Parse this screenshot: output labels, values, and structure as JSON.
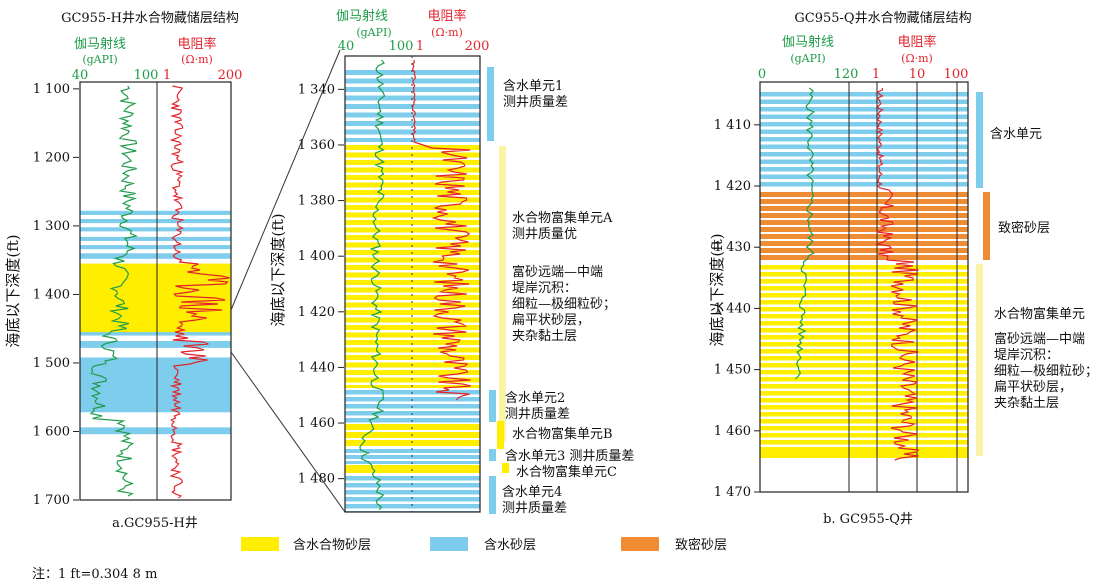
{
  "colors": {
    "hydrate": "#FFEE00",
    "water": "#7FCDEC",
    "tight": "#F08C33",
    "gamma": "#1E9C4A",
    "resistivity": "#E3232C",
    "bracket_water": "#7FCDEC",
    "bracket_hydrate": "#FBF4A6",
    "bracket_tight": "#F08C33"
  },
  "panel_a": {
    "title": "GC955-H井水合物藏储层结构",
    "caption": "a.GC955-H井",
    "ylabel": "海底以下深度(ft)",
    "gamma_label": "伽马射线",
    "gamma_unit": "(gAPI)",
    "res_label": "电阻率",
    "res_unit": "(Ω·m)",
    "gamma_ticks": [
      "40",
      "100"
    ],
    "res_ticks": [
      "1",
      "200"
    ],
    "depth_ticks": [
      "1 100",
      "1 200",
      "1 300",
      "1 400",
      "1 500",
      "1 600",
      "1 700"
    ],
    "depth_range": [
      1090,
      1700
    ],
    "hydrate_bands": [
      [
        1355,
        1455
      ]
    ],
    "water_bands": [
      [
        1278,
        1284
      ],
      [
        1290,
        1296
      ],
      [
        1302,
        1308
      ],
      [
        1316,
        1322
      ],
      [
        1328,
        1334
      ],
      [
        1340,
        1348
      ],
      [
        1445,
        1460
      ],
      [
        1468,
        1478
      ],
      [
        1492,
        1572
      ],
      [
        1594,
        1604
      ]
    ]
  },
  "panel_zoom": {
    "gamma_label": "伽马射线",
    "gamma_unit": "(gAPI)",
    "res_label": "电阻率",
    "res_unit": "(Ω·m)",
    "gamma_ticks": [
      "40",
      "100"
    ],
    "res_ticks": [
      "1",
      "200"
    ],
    "ylabel": "海底以下深度(ft)",
    "depth_ticks": [
      "1 340",
      "1 360",
      "1 380",
      "1 400",
      "1 420",
      "1 440",
      "1 460",
      "1 480"
    ],
    "depth_range": [
      1328,
      1492
    ],
    "annotations": [
      {
        "lines": [
          "含水单元1",
          "测井质量差"
        ]
      },
      {
        "lines": [
          "水合物富集单元A",
          "测井质量优"
        ]
      },
      {
        "lines": [
          "富砂远端—中端",
          "堤岸沉积：",
          "细粒—极细粒砂；",
          "扁平状砂层，",
          "夹杂黏土层"
        ]
      },
      {
        "lines": [
          "含水单元2",
          "测井质量差"
        ]
      },
      {
        "lines": [
          "水合物富集单元B"
        ]
      },
      {
        "lines": [
          "含水单元3  测井质量差"
        ]
      },
      {
        "lines": [
          "水合物富集单元C"
        ]
      },
      {
        "lines": [
          "含水单元4",
          "测井质量差"
        ]
      }
    ]
  },
  "panel_b": {
    "title": "GC955-Q井水合物藏储层结构",
    "caption": "b. GC955-Q井",
    "ylabel": "海底以下深度(ft)",
    "gamma_label": "伽马射线",
    "gamma_unit": "(gAPI)",
    "res_label": "电阻率",
    "res_unit": "(Ω·m)",
    "gamma_ticks": [
      "0",
      "120"
    ],
    "res_ticks": [
      "1",
      "10",
      "100"
    ],
    "depth_ticks": [
      "1 410",
      "1 420",
      "1 430",
      "1 440",
      "1 450",
      "1 460",
      "1 470"
    ],
    "depth_range": [
      1403,
      1470
    ],
    "annotations": [
      {
        "lines": [
          "含水单元"
        ]
      },
      {
        "lines": [
          "致密砂层"
        ]
      },
      {
        "lines": [
          "水合物富集单元",
          "富砂远端—中端",
          "堤岸沉积：",
          "细粒—极细粒砂；",
          "扁平状砂层，",
          "夹杂黏土层"
        ]
      }
    ]
  },
  "legend": [
    {
      "label": "含水合物砂层",
      "color": "#FFEE00"
    },
    {
      "label": "含水砂层",
      "color": "#7FCDEC"
    },
    {
      "label": "致密砂层",
      "color": "#F08C33"
    }
  ],
  "note": "注：1 ft=0.304 8 m"
}
